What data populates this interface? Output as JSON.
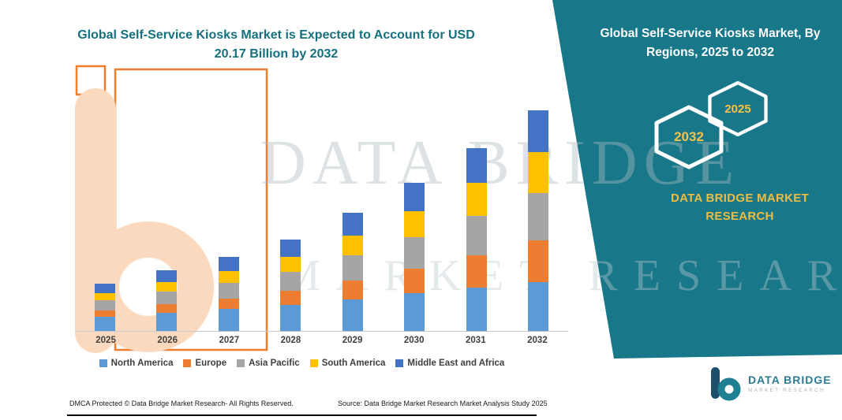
{
  "header": {
    "title": "Global Self-Service Kiosks Market is Expected to Account for USD 20.17 Billion by 2032"
  },
  "side_panel": {
    "title": "Global Self-Service Kiosks Market, By Regions, 2025 to 2032",
    "hexagons": [
      {
        "year": "2032"
      },
      {
        "year": "2025"
      }
    ],
    "brand": "DATA BRIDGE MARKET RESEARCH",
    "background_color": "#187889",
    "accent_gold": "#ECBC43"
  },
  "watermark": {
    "line1": "DATA BRIDGE",
    "line2": "MARKET RESEARCH"
  },
  "chart_data": {
    "type": "bar",
    "stacked": true,
    "title": "Global Self-Service Kiosks Market is Expected to Account for USD 20.17 Billion by 2032",
    "categories": [
      "2025",
      "2026",
      "2027",
      "2028",
      "2029",
      "2030",
      "2031",
      "2032"
    ],
    "series": [
      {
        "name": "North America",
        "color": "#5B9BD5",
        "values": [
          1.3,
          1.65,
          2.0,
          2.4,
          2.9,
          3.45,
          4.0,
          4.5
        ]
      },
      {
        "name": "Europe",
        "color": "#ED7D31",
        "values": [
          0.6,
          0.78,
          0.98,
          1.25,
          1.7,
          2.25,
          2.95,
          3.8
        ]
      },
      {
        "name": "Asia Pacific",
        "color": "#A5A5A5",
        "values": [
          0.9,
          1.15,
          1.42,
          1.75,
          2.3,
          2.9,
          3.6,
          4.3
        ]
      },
      {
        "name": "South America",
        "color": "#FFC000",
        "values": [
          0.7,
          0.9,
          1.12,
          1.4,
          1.85,
          2.35,
          3.0,
          3.8
        ]
      },
      {
        "name": "Middle East and Africa",
        "color": "#4472C4",
        "values": [
          0.85,
          1.05,
          1.3,
          1.6,
          2.1,
          2.6,
          3.15,
          3.77
        ]
      }
    ],
    "values_unit": "USD Billion",
    "values_note": "No numeric axis shown in image; series values estimated from bar heights so that 2032 total equals 20.17",
    "ylim": [
      0,
      22
    ],
    "xlabel": "",
    "ylabel": "",
    "grid": false,
    "legend_position": "bottom"
  },
  "footer": {
    "dmca": "DMCA Protected © Data Bridge Market Research-  All Rights Reserved.",
    "source": "Source: Data Bridge Market Research  Market Analysis Study 2025"
  },
  "logo": {
    "title": "DATA BRIDGE",
    "subtitle": "MARKET RESEARCH"
  }
}
